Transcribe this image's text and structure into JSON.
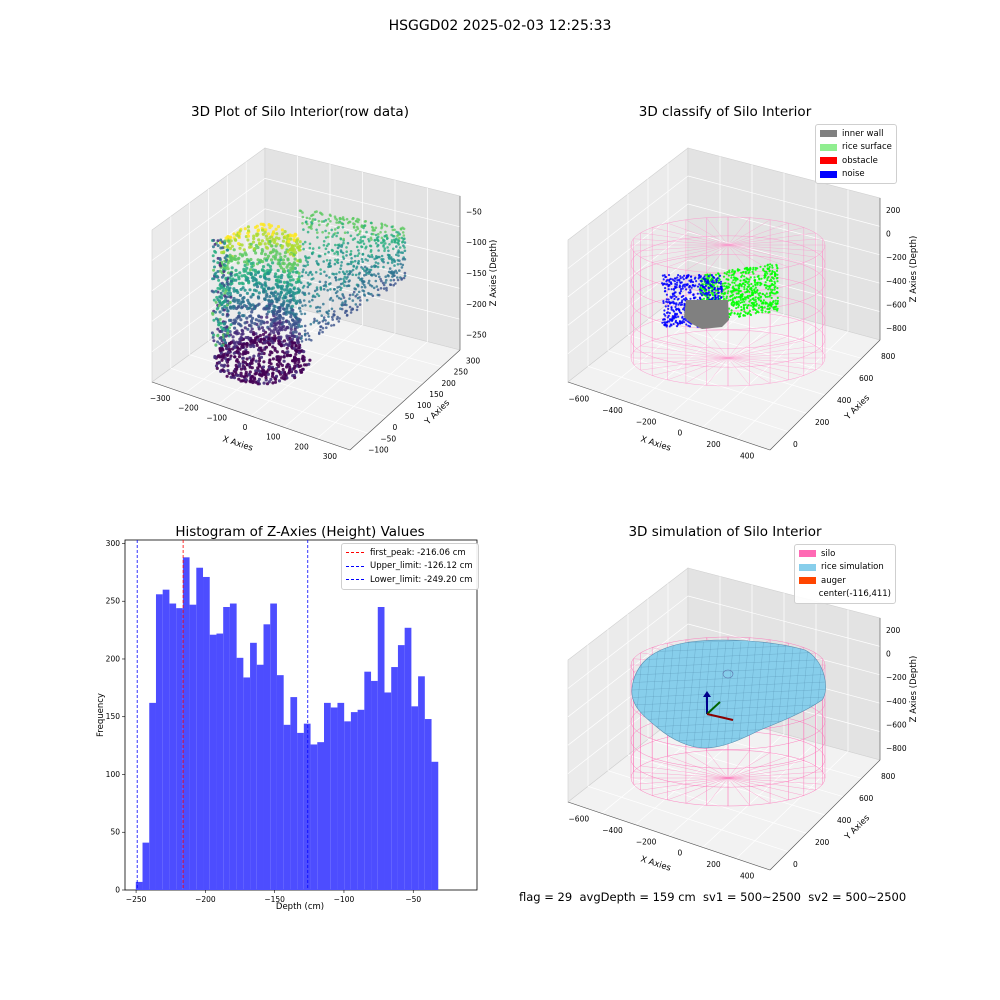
{
  "figure": {
    "suptitle": "HSGGD02 2025-02-03 12:25:33",
    "footer": "flag = 29  avgDepth = 159 cm  sv1 = 500~2500  sv2 = 500~2500"
  },
  "panels": {
    "raw": {
      "title": "3D Plot of Silo Interior(row data)",
      "xlabel": "X Axies",
      "ylabel": "Y Axies",
      "zlabel": "Z Axies (Depth)",
      "xticks": [
        "−300",
        "−200",
        "−100",
        "0",
        "100",
        "200",
        "300"
      ],
      "yticks": [
        "−100",
        "−50",
        "0",
        "50",
        "100",
        "150",
        "200",
        "250",
        "300"
      ],
      "zticks": [
        "−50",
        "−100",
        "−150",
        "−200",
        "−250"
      ]
    },
    "classify": {
      "title": "3D classify of Silo Interior",
      "xlabel": "X Axies",
      "ylabel": "Y Axies",
      "zlabel": "Z Axies (Depth)",
      "xticks": [
        "−600",
        "−400",
        "−200",
        "0",
        "200",
        "400"
      ],
      "yticks": [
        "0",
        "200",
        "400",
        "600",
        "800"
      ],
      "zticks": [
        "200",
        "0",
        "−200",
        "−400",
        "−600",
        "−800"
      ],
      "legend": [
        {
          "label": "inner wall",
          "color": "#808080"
        },
        {
          "label": "rice surface",
          "color": "#90ee90"
        },
        {
          "label": "obstacle",
          "color": "#ff0000"
        },
        {
          "label": "noise",
          "color": "#0000ff"
        }
      ]
    },
    "histogram": {
      "title": "Histogram of Z-Axies (Height) Values",
      "xlabel": "Depth (cm)",
      "ylabel": "Frequency",
      "legend": [
        {
          "label": "first_peak: -216.06 cm",
          "color": "#ff0000"
        },
        {
          "label": "Upper_limit: -126.12 cm",
          "color": "#0000ff"
        },
        {
          "label": "Lower_limit: -249.20 cm",
          "color": "#0000ff"
        }
      ]
    },
    "simulation": {
      "title": "3D simulation of Silo Interior",
      "xlabel": "X Axies",
      "ylabel": "Y Axies",
      "zlabel": "Z Axies (Depth)",
      "xticks": [
        "−600",
        "−400",
        "−200",
        "0",
        "200",
        "400"
      ],
      "yticks": [
        "0",
        "200",
        "400",
        "600",
        "800"
      ],
      "zticks": [
        "200",
        "0",
        "−200",
        "−400",
        "−600",
        "−800"
      ],
      "legend": [
        {
          "label": "silo",
          "color": "#ff69b4"
        },
        {
          "label": "rice simulation",
          "color": "#87ceeb"
        },
        {
          "label": "auger",
          "color": "#ff4500"
        },
        {
          "label": "center(-116,411)",
          "color": ""
        }
      ]
    }
  },
  "chart_data": [
    {
      "type": "scatter",
      "title": "3D Plot of Silo Interior(row data)",
      "xlabel": "X Axies",
      "ylabel": "Y Axies",
      "zlabel": "Z Axies (Depth)",
      "xlim": [
        -350,
        350
      ],
      "ylim": [
        -100,
        300
      ],
      "zlim": [
        -260,
        -30
      ]
    },
    {
      "type": "scatter",
      "title": "3D classify of Silo Interior",
      "xlabel": "X Axies",
      "ylabel": "Y Axies",
      "zlabel": "Z Axies (Depth)",
      "xlim": [
        -650,
        420
      ],
      "ylim": [
        -50,
        880
      ],
      "zlim": [
        -850,
        250
      ],
      "series": [
        {
          "name": "inner wall"
        },
        {
          "name": "rice surface"
        },
        {
          "name": "obstacle"
        },
        {
          "name": "noise"
        }
      ]
    },
    {
      "type": "bar",
      "title": "Histogram of Z-Axies (Height) Values",
      "xlabel": "Depth (cm)",
      "ylabel": "Frequency",
      "xlim": [
        -258,
        -4
      ],
      "ylim": [
        0,
        303
      ],
      "xticks": [
        -250,
        -200,
        -150,
        -100,
        -50
      ],
      "yticks": [
        0,
        50,
        100,
        150,
        200,
        250,
        300
      ],
      "bin_start": -250.2,
      "bin_width": 4.85,
      "values": [
        7,
        41,
        162,
        256,
        260,
        248,
        244,
        288,
        247,
        279,
        271,
        221,
        222,
        245,
        248,
        201,
        184,
        214,
        195,
        230,
        248,
        186,
        143,
        167,
        136,
        144,
        126,
        128,
        162,
        158,
        162,
        146,
        154,
        156,
        189,
        181,
        245,
        171,
        193,
        212,
        227,
        159,
        185,
        148,
        111
      ],
      "vlines": [
        {
          "name": "first_peak: -216.06 cm",
          "x": -216.06,
          "color": "#ff0000"
        },
        {
          "name": "Upper_limit: -126.12 cm",
          "x": -126.12,
          "color": "#0000ff"
        },
        {
          "name": "Lower_limit: -249.20 cm",
          "x": -249.2,
          "color": "#0000ff"
        }
      ],
      "color": "#4d4dff"
    },
    {
      "type": "area",
      "title": "3D simulation of Silo Interior",
      "xlabel": "X Axies",
      "ylabel": "Y Axies",
      "zlabel": "Z Axies (Depth)",
      "xlim": [
        -650,
        420
      ],
      "ylim": [
        -50,
        880
      ],
      "zlim": [
        -850,
        250
      ],
      "series": [
        {
          "name": "silo"
        },
        {
          "name": "rice simulation"
        },
        {
          "name": "auger"
        }
      ],
      "center": [
        -116,
        411
      ]
    }
  ]
}
